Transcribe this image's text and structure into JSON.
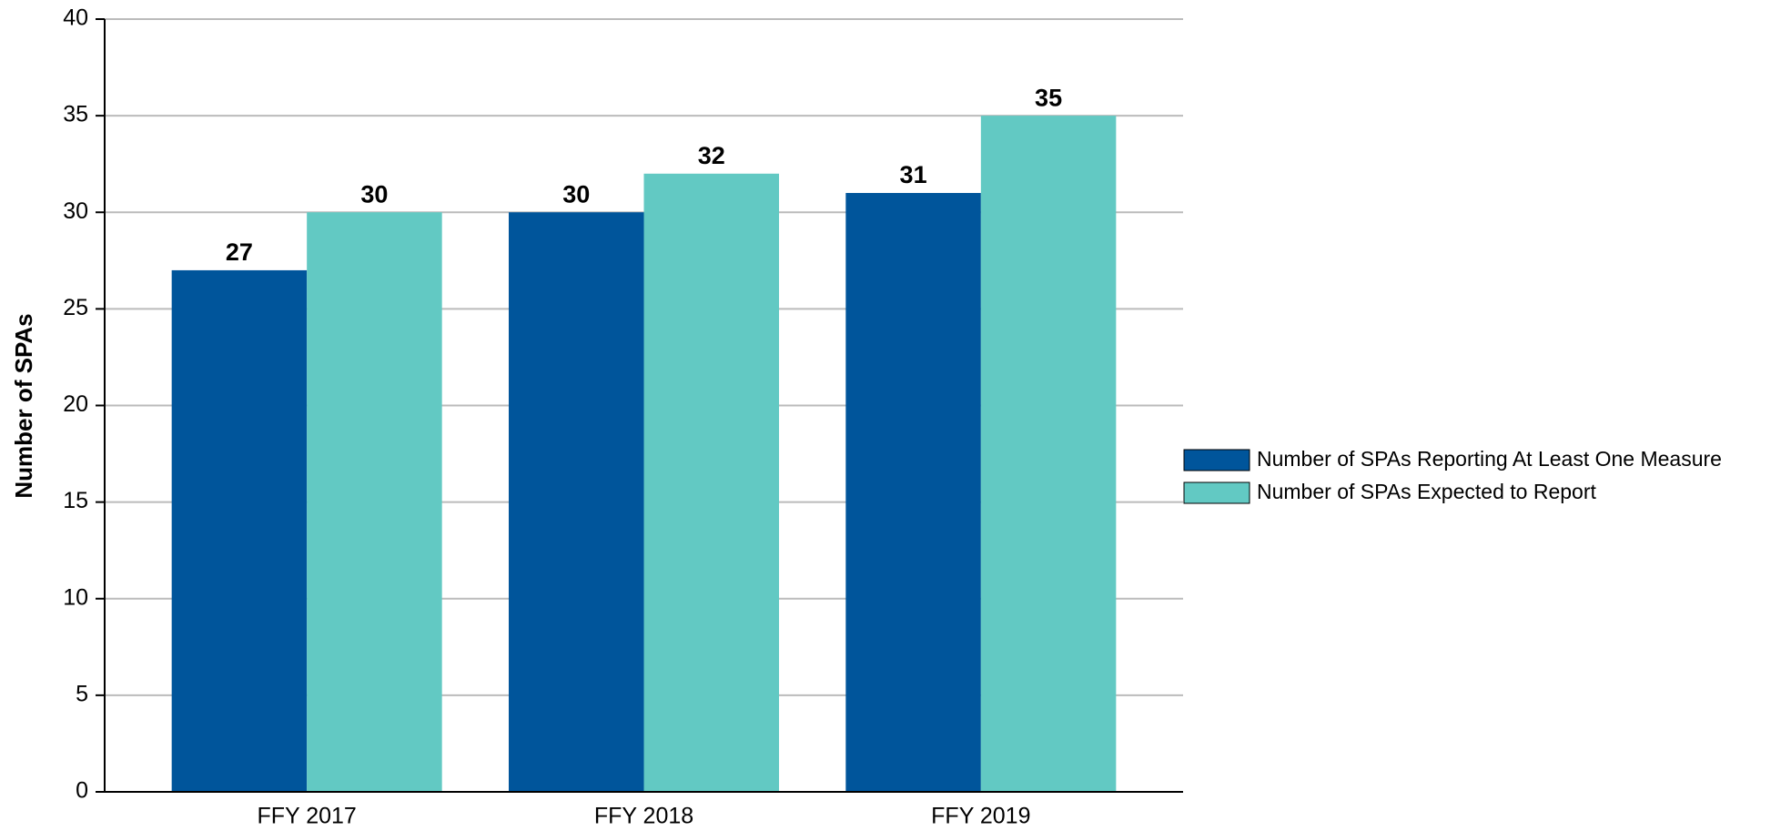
{
  "chart_data": {
    "type": "bar",
    "y_axis_label": "Number of SPAs",
    "categories": [
      "FFY 2017",
      "FFY 2018",
      "FFY 2019"
    ],
    "series": [
      {
        "name": "Number of SPAs Reporting At Least One Measure",
        "color": "#00559b",
        "values": [
          27,
          30,
          31
        ]
      },
      {
        "name": "Number of SPAs Expected to Report",
        "color": "#62c9c3",
        "values": [
          30,
          32,
          35
        ]
      }
    ],
    "ylim": [
      0,
      40
    ],
    "yticks": [
      0,
      5,
      10,
      15,
      20,
      25,
      30,
      35,
      40
    ],
    "grid": true,
    "legend": "right"
  }
}
